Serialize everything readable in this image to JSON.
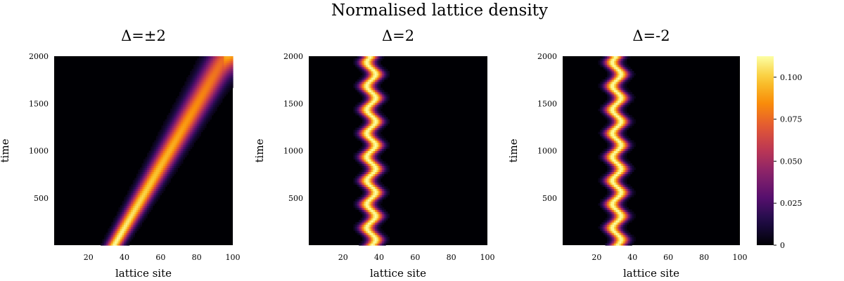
{
  "title": "Normalised lattice density",
  "chart_data": [
    {
      "type": "heatmap",
      "title": "Δ=±2",
      "xlabel": "lattice site",
      "ylabel": "time",
      "xlim": [
        1,
        100
      ],
      "ylim": [
        1,
        2000
      ],
      "xticks": [
        20,
        40,
        60,
        80,
        100
      ],
      "yticks": [
        500,
        1000,
        1500,
        2000
      ],
      "pattern": "drifting",
      "start_site": 34,
      "end_site": 96,
      "width_start": 3,
      "width_end": 6,
      "peak_start": 0.112,
      "peak_end": 0.075
    },
    {
      "type": "heatmap",
      "title": "Δ=2",
      "xlabel": "lattice site",
      "ylabel": "time",
      "xlim": [
        1,
        100
      ],
      "ylim": [
        1,
        2000
      ],
      "xticks": [
        20,
        40,
        60,
        80,
        100
      ],
      "yticks": [
        500,
        1000,
        1500,
        2000
      ],
      "pattern": "oscillating",
      "center_site": 35.5,
      "amplitude_sites": 2.5,
      "period_time": 250,
      "width": 3,
      "peak": 0.112
    },
    {
      "type": "heatmap",
      "title": "Δ=-2",
      "xlabel": "lattice site",
      "ylabel": "time",
      "xlim": [
        1,
        100
      ],
      "ylim": [
        1,
        2000
      ],
      "xticks": [
        20,
        40,
        60,
        80,
        100
      ],
      "yticks": [
        500,
        1000,
        1500,
        2000
      ],
      "pattern": "oscillating",
      "center_site": 31,
      "amplitude_sites": 2.5,
      "period_time": 250,
      "width": 3,
      "peak": 0.112
    }
  ],
  "colorbar": {
    "colormap": "inferno",
    "min": 0,
    "max": 0.1125,
    "ticks": [
      0,
      0.025,
      0.05,
      0.075,
      0.1
    ],
    "tick_labels": [
      "0",
      "0.025",
      "0.050",
      "0.075",
      "0.100"
    ]
  }
}
